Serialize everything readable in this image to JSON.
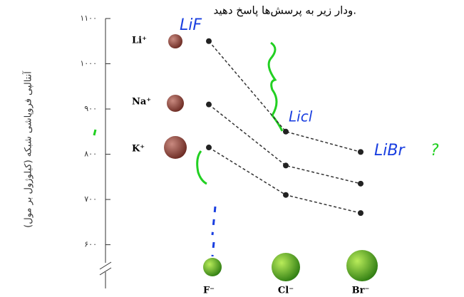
{
  "chart_data": {
    "type": "line",
    "title": "ودار زیر به پرسش‌ها پاسخ دهید.",
    "y_label": "آنتالپی فروپاشی شبکه (کیلوژول بر مول)",
    "categories": [
      "F⁻",
      "Cl⁻",
      "Br⁻"
    ],
    "series": [
      {
        "name": "Li⁺",
        "color": "#333333",
        "values": [
          1050,
          850,
          805
        ]
      },
      {
        "name": "Na⁺",
        "color": "#333333",
        "values": [
          910,
          775,
          735
        ]
      },
      {
        "name": "K⁺",
        "color": "#333333",
        "values": [
          815,
          710,
          670
        ]
      }
    ],
    "ylim": [
      560,
      1100
    ],
    "yticks": [
      {
        "value": 600,
        "label": "۶۰۰"
      },
      {
        "value": 700,
        "label": "۷۰۰"
      },
      {
        "value": 800,
        "label": "۸۰۰"
      },
      {
        "value": 900,
        "label": "۹۰۰"
      },
      {
        "value": 1000,
        "label": "۱۰۰۰"
      },
      {
        "value": 1100,
        "label": "۱۱۰۰"
      }
    ],
    "annotations": [
      "LiF",
      "Licl",
      "LiBr",
      "?"
    ]
  }
}
